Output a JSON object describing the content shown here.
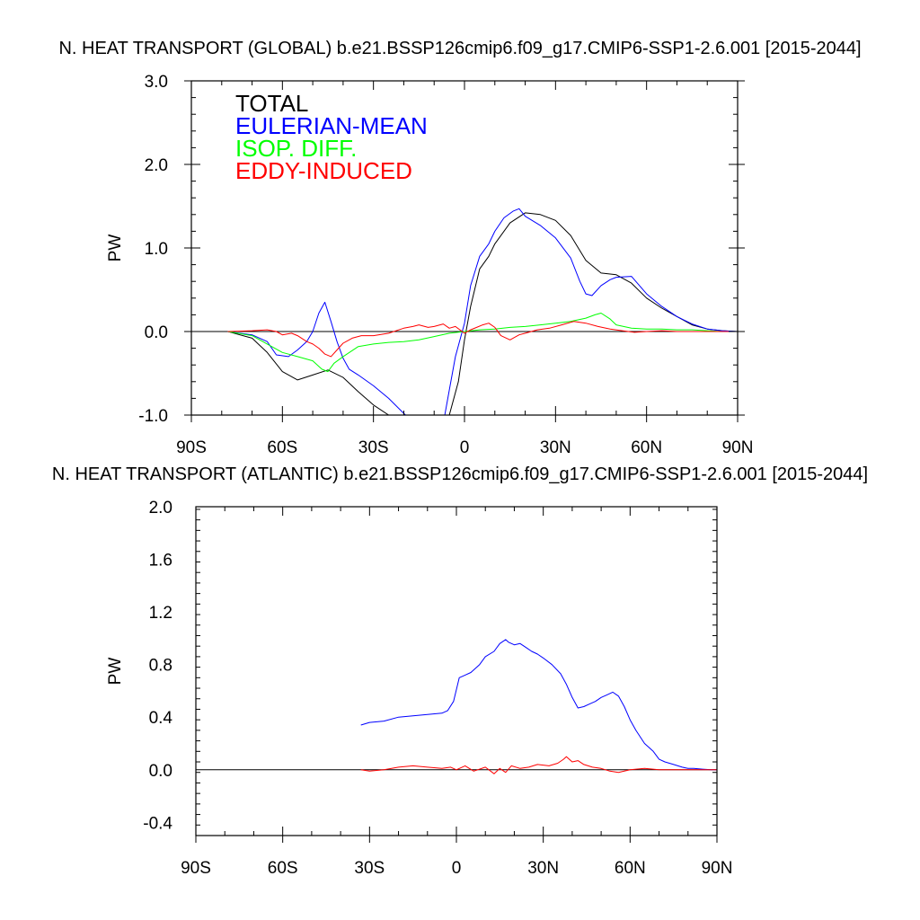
{
  "chart_data": [
    {
      "type": "line",
      "title": "N. HEAT TRANSPORT (GLOBAL) b.e21.BSSP126cmip6.f09_g17.CMIP6-SSP1-2.6.001 [2015-2044]",
      "xlabel": "",
      "ylabel": "PW",
      "xlim": [
        -90,
        90
      ],
      "ylim": [
        -1.0,
        3.0
      ],
      "xticks": [
        -90,
        -60,
        -30,
        0,
        30,
        60,
        90
      ],
      "xtick_labels": [
        "90S",
        "60S",
        "30S",
        "0",
        "30N",
        "60N",
        "90N"
      ],
      "yticks": [
        -1.0,
        0.0,
        1.0,
        2.0,
        3.0
      ],
      "ytick_labels": [
        "-1.0",
        "0.0",
        "1.0",
        "2.0",
        "3.0"
      ],
      "legend_position": "top-left",
      "series": [
        {
          "name": "TOTAL",
          "color": "#000000",
          "x": [
            -78,
            -70,
            -65,
            -60,
            -55,
            -50,
            -45,
            -40,
            -35,
            -30,
            -25,
            -20,
            -15,
            -10,
            -5,
            -2,
            0,
            2,
            5,
            8,
            10,
            15,
            20,
            25,
            30,
            35,
            40,
            45,
            50,
            55,
            60,
            65,
            70,
            75,
            80,
            85,
            90
          ],
          "y": [
            0.0,
            -0.08,
            -0.25,
            -0.48,
            -0.58,
            -0.52,
            -0.46,
            -0.55,
            -0.72,
            -0.88,
            -1.0,
            -1.15,
            -1.25,
            -1.2,
            -1.0,
            -0.6,
            -0.1,
            0.3,
            0.75,
            0.9,
            1.05,
            1.3,
            1.42,
            1.4,
            1.33,
            1.15,
            0.85,
            0.7,
            0.68,
            0.58,
            0.4,
            0.28,
            0.18,
            0.08,
            0.03,
            0.01,
            0.0
          ]
        },
        {
          "name": "EULERIAN-MEAN",
          "color": "#0000ff",
          "x": [
            -78,
            -70,
            -65,
            -62,
            -58,
            -55,
            -52,
            -50,
            -48,
            -46,
            -44,
            -42,
            -40,
            -38,
            -35,
            -30,
            -25,
            -20,
            -15,
            -10,
            -7,
            -5,
            -3,
            0,
            2,
            5,
            8,
            10,
            13,
            16,
            18,
            20,
            25,
            30,
            35,
            38,
            40,
            42,
            45,
            48,
            50,
            55,
            60,
            65,
            70,
            75,
            80,
            85,
            90
          ],
          "y": [
            0.0,
            -0.04,
            -0.12,
            -0.28,
            -0.3,
            -0.22,
            -0.12,
            0.0,
            0.22,
            0.35,
            0.12,
            -0.12,
            -0.32,
            -0.45,
            -0.52,
            -0.65,
            -0.8,
            -0.98,
            -1.15,
            -1.2,
            -1.1,
            -0.7,
            -0.3,
            0.1,
            0.55,
            0.9,
            1.05,
            1.2,
            1.36,
            1.44,
            1.47,
            1.38,
            1.27,
            1.12,
            0.88,
            0.6,
            0.45,
            0.43,
            0.55,
            0.62,
            0.65,
            0.66,
            0.45,
            0.3,
            0.18,
            0.09,
            0.03,
            0.01,
            0.0
          ]
        },
        {
          "name": "ISOP. DIFF.",
          "color": "#00ff00",
          "x": [
            -78,
            -70,
            -65,
            -60,
            -55,
            -50,
            -47,
            -45,
            -43,
            -40,
            -35,
            -30,
            -25,
            -20,
            -15,
            -10,
            -5,
            0,
            5,
            10,
            15,
            20,
            25,
            30,
            35,
            40,
            43,
            45,
            48,
            50,
            55,
            60,
            65,
            70,
            75,
            80,
            85,
            90
          ],
          "y": [
            0.0,
            -0.05,
            -0.15,
            -0.25,
            -0.3,
            -0.35,
            -0.45,
            -0.48,
            -0.38,
            -0.3,
            -0.18,
            -0.15,
            -0.13,
            -0.12,
            -0.1,
            -0.06,
            -0.02,
            0.0,
            0.02,
            0.03,
            0.05,
            0.06,
            0.08,
            0.1,
            0.12,
            0.16,
            0.2,
            0.22,
            0.15,
            0.08,
            0.04,
            0.03,
            0.03,
            0.02,
            0.02,
            0.01,
            0.0,
            0.0
          ]
        },
        {
          "name": "EDDY-INDUCED",
          "color": "#ff0000",
          "x": [
            -78,
            -70,
            -65,
            -62,
            -60,
            -57,
            -55,
            -52,
            -50,
            -48,
            -46,
            -44,
            -42,
            -40,
            -37,
            -34,
            -30,
            -25,
            -20,
            -17,
            -15,
            -12,
            -10,
            -7,
            -5,
            -3,
            0,
            2,
            4,
            6,
            8,
            10,
            12,
            15,
            18,
            20,
            24,
            28,
            32,
            36,
            40,
            44,
            48,
            52,
            56,
            60,
            65,
            70,
            75,
            80,
            85,
            90
          ],
          "y": [
            0.0,
            0.01,
            0.02,
            0.0,
            -0.04,
            -0.02,
            -0.05,
            -0.12,
            -0.15,
            -0.2,
            -0.27,
            -0.3,
            -0.22,
            -0.14,
            -0.08,
            -0.05,
            -0.05,
            -0.02,
            0.04,
            0.06,
            0.08,
            0.05,
            0.06,
            0.09,
            0.04,
            0.06,
            -0.02,
            0.02,
            0.05,
            0.08,
            0.1,
            0.05,
            -0.05,
            -0.1,
            -0.04,
            -0.02,
            0.02,
            0.04,
            0.08,
            0.12,
            0.1,
            0.06,
            0.03,
            0.01,
            -0.01,
            0.0,
            0.01,
            0.0,
            0.0,
            0.0,
            0.0,
            0.0
          ]
        }
      ]
    },
    {
      "type": "line",
      "title": "N. HEAT TRANSPORT (ATLANTIC) b.e21.BSSP126cmip6.f09_g17.CMIP6-SSP1-2.6.001 [2015-2044]",
      "xlabel": "",
      "ylabel": "PW",
      "xlim": [
        -90,
        90
      ],
      "ylim": [
        -0.5,
        2.0
      ],
      "xticks": [
        -90,
        -60,
        -30,
        0,
        30,
        60,
        90
      ],
      "xtick_labels": [
        "90S",
        "60S",
        "30S",
        "0",
        "30N",
        "60N",
        "90N"
      ],
      "yticks": [
        -0.4,
        0.0,
        0.4,
        0.8,
        1.2,
        1.6,
        2.0
      ],
      "ytick_labels": [
        "-0.4",
        "0.0",
        "0.4",
        "0.8",
        "1.2",
        "1.6",
        "2.0"
      ],
      "series": [
        {
          "color": "#0000ff",
          "x": [
            -33,
            -30,
            -25,
            -20,
            -15,
            -10,
            -5,
            -3,
            -1,
            1,
            3,
            5,
            8,
            10,
            13,
            15,
            17,
            18,
            20,
            22,
            24,
            26,
            28,
            30,
            33,
            36,
            38,
            40,
            42,
            44,
            46,
            48,
            50,
            52,
            54,
            56,
            58,
            60,
            62,
            65,
            68,
            70,
            72,
            75,
            78,
            80,
            82,
            85,
            88,
            90
          ],
          "y": [
            0.34,
            0.36,
            0.37,
            0.4,
            0.41,
            0.42,
            0.43,
            0.45,
            0.52,
            0.7,
            0.72,
            0.74,
            0.8,
            0.86,
            0.9,
            0.96,
            0.99,
            0.97,
            0.95,
            0.96,
            0.93,
            0.9,
            0.88,
            0.85,
            0.8,
            0.73,
            0.65,
            0.55,
            0.47,
            0.48,
            0.5,
            0.52,
            0.55,
            0.57,
            0.59,
            0.56,
            0.48,
            0.38,
            0.3,
            0.2,
            0.14,
            0.08,
            0.06,
            0.04,
            0.02,
            0.01,
            0.01,
            0.005,
            0.0,
            0.0
          ]
        },
        {
          "color": "#ff0000",
          "x": [
            -33,
            -30,
            -25,
            -20,
            -15,
            -10,
            -5,
            -2,
            0,
            3,
            6,
            10,
            13,
            15,
            17,
            19,
            22,
            25,
            28,
            32,
            35,
            37,
            38,
            40,
            42,
            44,
            47,
            50,
            53,
            56,
            60,
            65,
            70,
            75,
            80,
            85,
            90
          ],
          "y": [
            0.0,
            -0.01,
            0.0,
            0.02,
            0.03,
            0.02,
            0.01,
            0.02,
            0.0,
            0.03,
            -0.01,
            0.02,
            -0.03,
            0.01,
            -0.02,
            0.03,
            0.01,
            0.02,
            0.04,
            0.03,
            0.05,
            0.08,
            0.1,
            0.06,
            0.07,
            0.04,
            0.02,
            0.01,
            -0.01,
            -0.02,
            0.0,
            0.01,
            0.0,
            0.0,
            0.0,
            0.0,
            0.0
          ]
        }
      ]
    }
  ]
}
